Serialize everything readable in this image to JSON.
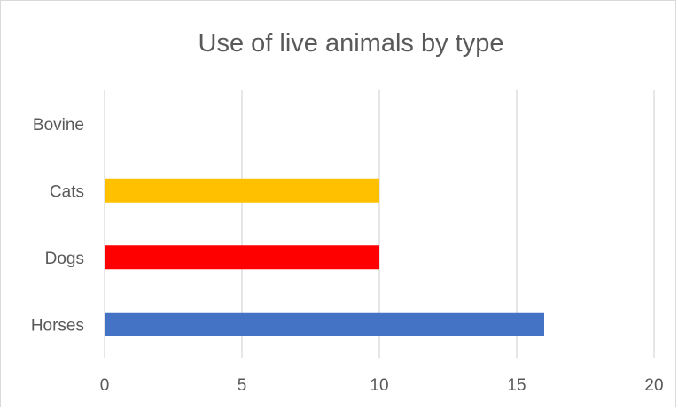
{
  "chart_data": {
    "type": "bar",
    "orientation": "horizontal",
    "title": "Use of live animals by type",
    "categories": [
      "Horses",
      "Dogs",
      "Cats",
      "Bovine"
    ],
    "values": [
      16,
      10,
      10,
      0
    ],
    "colors": [
      "#4472C4",
      "#FF0000",
      "#FFC000",
      "#A5A5A5"
    ],
    "xlim": [
      0,
      20
    ],
    "x_ticks": [
      "0",
      "5",
      "10",
      "15",
      "20"
    ],
    "grid": "vertical",
    "legend": "none"
  }
}
